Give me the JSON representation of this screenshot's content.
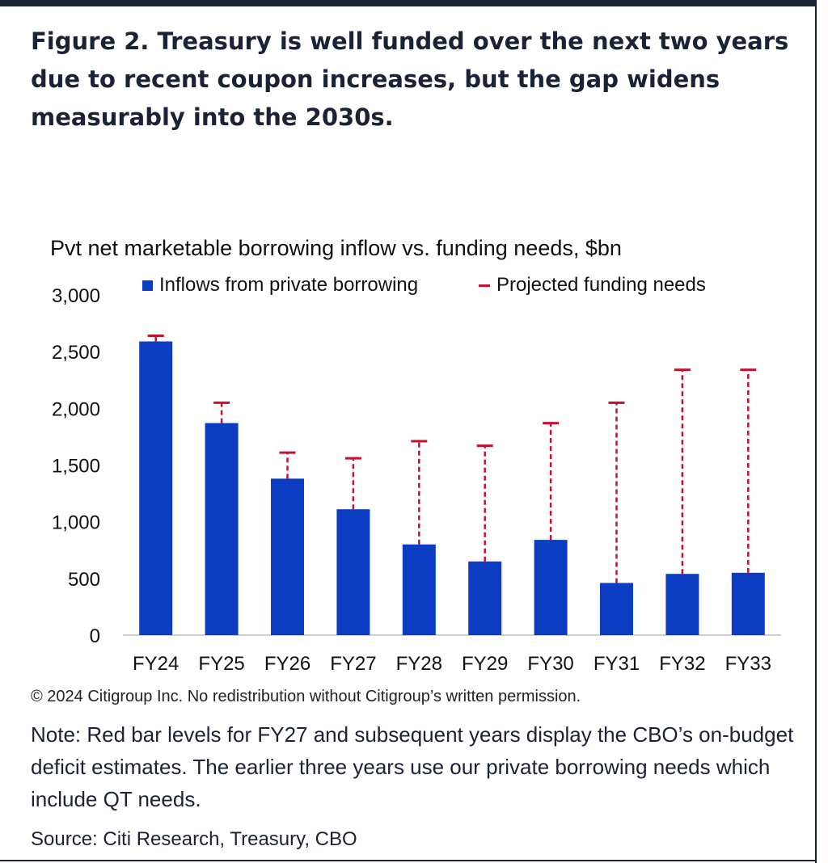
{
  "figure": {
    "title": "Figure 2. Treasury is well funded over the next two years due to recent coupon increases, but the gap widens measurably into the 2030s."
  },
  "chart_data": {
    "type": "bar",
    "title": "Pvt net marketable borrowing inflow vs. funding needs, $bn",
    "categories": [
      "FY24",
      "FY25",
      "FY26",
      "FY27",
      "FY28",
      "FY29",
      "FY30",
      "FY31",
      "FY32",
      "FY33"
    ],
    "series": [
      {
        "name": "Inflows from private borrowing",
        "type": "bar",
        "color": "#0b3cc1",
        "values": [
          2590,
          1870,
          1380,
          1110,
          800,
          650,
          840,
          460,
          540,
          550
        ]
      },
      {
        "name": "Projected funding needs",
        "type": "error-dash",
        "color": "#c8102e",
        "values": [
          2640,
          2050,
          1610,
          1560,
          1710,
          1670,
          1870,
          2050,
          2340,
          2340
        ]
      }
    ],
    "yticks": [
      "0",
      "500",
      "1,000",
      "1,500",
      "2,000",
      "2,500",
      "3,000"
    ],
    "ylim": [
      0,
      3000
    ],
    "grid": false,
    "legend_position": "top"
  },
  "footer": {
    "copyright": "© 2024 Citigroup Inc. No redistribution without Citigroup’s written permission.",
    "note": "Note: Red bar levels for FY27 and subsequent years display the CBO’s on-budget deficit estimates. The earlier three years use our private borrowing needs which include QT needs.",
    "source": "Source: Citi Research, Treasury, CBO"
  }
}
